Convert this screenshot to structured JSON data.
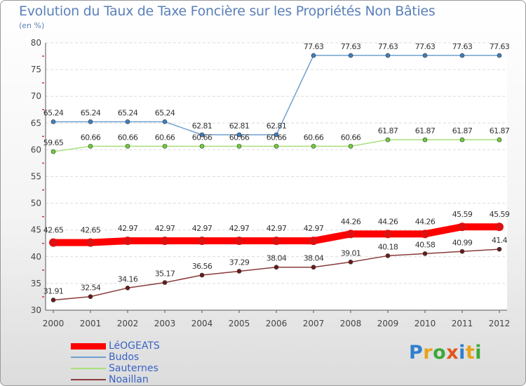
{
  "title": "Evolution du Taux de Taxe Foncière sur les Propriétés Non Bâties",
  "unit_label": "(en %)",
  "logo": {
    "text": "Proxiti",
    "letters": [
      {
        "ch": "P",
        "color": "#2f7fcf"
      },
      {
        "ch": "r",
        "color": "#e8a31c"
      },
      {
        "ch": "o",
        "color": "#3ea83a"
      },
      {
        "ch": "x",
        "color": "#e0561c"
      },
      {
        "ch": "i",
        "color": "#2f7fcf"
      },
      {
        "ch": "t",
        "color": "#e8a31c"
      },
      {
        "ch": "i",
        "color": "#3ea83a"
      }
    ]
  },
  "chart_data": {
    "type": "line",
    "title": "Evolution du Taux de Taxe Foncière sur les Propriétés Non Bâties",
    "ylabel": "(en %)",
    "ylim": [
      30,
      80
    ],
    "yticks": [
      30,
      35,
      40,
      45,
      50,
      55,
      60,
      65,
      70,
      75,
      80
    ],
    "grid": true,
    "legend_position": "bottom-left",
    "x": [
      "2000",
      "2001",
      "2002",
      "2003",
      "2004",
      "2005",
      "2006",
      "2007",
      "2008",
      "2009",
      "2010",
      "2011",
      "2012"
    ],
    "series": [
      {
        "name": "LéOGEATS",
        "color": "#ff0000",
        "marker_color": "#e01010",
        "values": [
          42.65,
          42.65,
          42.97,
          42.97,
          42.97,
          42.97,
          42.97,
          42.97,
          44.26,
          44.26,
          44.26,
          45.59,
          45.59
        ],
        "labels": [
          "42.65",
          "42.65",
          "42.97",
          "42.97",
          "42.97",
          "42.97",
          "42.97",
          "42.97",
          "44.26",
          "44.26",
          "44.26",
          "45.59",
          "45.59"
        ]
      },
      {
        "name": "Budos",
        "color": "#6fa0cf",
        "marker_color": "#3f7fc0",
        "values": [
          65.24,
          65.24,
          65.24,
          65.24,
          62.81,
          62.81,
          62.81,
          77.63,
          77.63,
          77.63,
          77.63,
          77.63,
          77.63
        ],
        "labels": [
          "65.24",
          "65.24",
          "65.24",
          "65.24",
          "62.81",
          "62.81",
          "62.81",
          "77.63",
          "77.63",
          "77.63",
          "77.63",
          "77.63",
          "77.63"
        ]
      },
      {
        "name": "Sauternes",
        "color": "#a8e07a",
        "marker_color": "#6fcf3a",
        "values": [
          59.65,
          60.66,
          60.66,
          60.66,
          60.66,
          60.66,
          60.66,
          60.66,
          60.66,
          61.87,
          61.87,
          61.87,
          61.87
        ],
        "labels": [
          "59.65",
          "60.66",
          "60.66",
          "60.66",
          "60.66",
          "60.66",
          "60.66",
          "60.66",
          "60.66",
          "61.87",
          "61.87",
          "61.87",
          "61.87"
        ]
      },
      {
        "name": "Noaillan",
        "color": "#8a3a3a",
        "marker_color": "#6a1a1a",
        "values": [
          31.91,
          32.54,
          34.16,
          35.17,
          36.56,
          37.29,
          38.04,
          38.04,
          39.01,
          40.18,
          40.58,
          40.99,
          41.4
        ],
        "labels": [
          "31.91",
          "32.54",
          "34.16",
          "35.17",
          "36.56",
          "37.29",
          "38.04",
          "38.04",
          "39.01",
          "40.18",
          "40.58",
          "40.99",
          "41.4"
        ]
      }
    ]
  }
}
